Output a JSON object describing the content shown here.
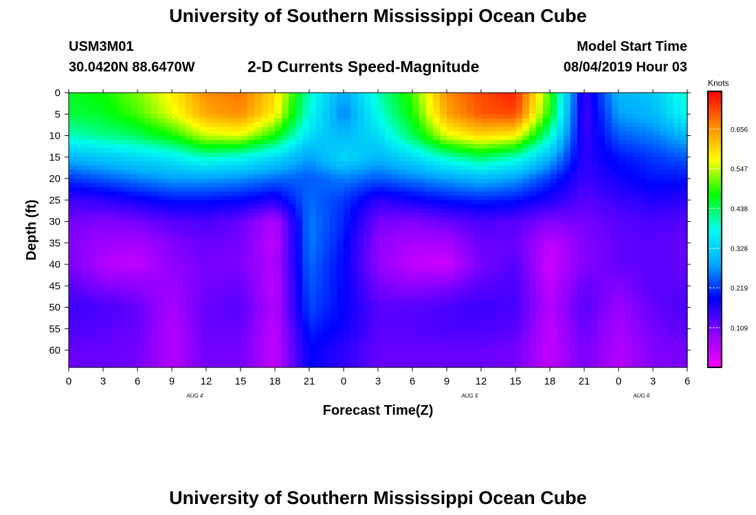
{
  "header": {
    "title_top": "University of Southern Mississippi Ocean Cube",
    "station_id": "USM3M01",
    "station_coords": "30.0420N 88.6470W",
    "plot_title": "2-D Currents Speed-Magnitude",
    "model_start_label": "Model Start Time",
    "model_start_value": "08/04/2019 Hour 03",
    "title_bottom": "University of Southern Mississippi Ocean Cube"
  },
  "chart_data": {
    "type": "heatmap",
    "title": "2-D Currents Speed-Magnitude",
    "xlabel": "Forecast Time(Z)",
    "ylabel": "Depth (ft)",
    "x_tick_labels": [
      "0",
      "3",
      "6",
      "9",
      "12",
      "15",
      "18",
      "21",
      "0",
      "3",
      "6",
      "9",
      "12",
      "15",
      "18",
      "21",
      "0",
      "3",
      "6"
    ],
    "x_hours_range": [
      0,
      54
    ],
    "date_labels": [
      {
        "text": "AUG 4",
        "hour": 11
      },
      {
        "text": "AUG 5",
        "hour": 35
      },
      {
        "text": "AUG 6",
        "hour": 50
      }
    ],
    "y_ticks": [
      0,
      5,
      10,
      15,
      20,
      25,
      30,
      35,
      40,
      45,
      50,
      55,
      60
    ],
    "ylim": [
      0,
      64
    ],
    "y_inverted": true,
    "colorbar": {
      "label": "Knots",
      "ticks": [
        "0.109",
        "0.219",
        "0.328",
        "0.438",
        "0.547",
        "0.656"
      ],
      "tick_values": [
        0.109,
        0.219,
        0.328,
        0.438,
        0.547,
        0.656
      ],
      "range": [
        0.0,
        0.76
      ],
      "colors": [
        "#ff00ff",
        "#8a00ff",
        "#0000ff",
        "#00aaff",
        "#00ffee",
        "#00ff00",
        "#ffff00",
        "#ff8800",
        "#ff0000"
      ]
    },
    "x_hours": [
      0,
      3,
      6,
      9,
      12,
      15,
      18,
      21,
      24,
      27,
      30,
      33,
      36,
      39,
      42,
      45,
      48,
      51,
      54
    ],
    "depth_ft": [
      0,
      5,
      10,
      15,
      20,
      25,
      30,
      35,
      40,
      45,
      50,
      55,
      60
    ],
    "values": [
      [
        0.46,
        0.48,
        0.52,
        0.58,
        0.66,
        0.68,
        0.6,
        0.4,
        0.28,
        0.4,
        0.5,
        0.66,
        0.71,
        0.74,
        0.5,
        0.15,
        0.3,
        0.32,
        0.4
      ],
      [
        0.45,
        0.46,
        0.5,
        0.56,
        0.64,
        0.66,
        0.58,
        0.38,
        0.26,
        0.38,
        0.48,
        0.64,
        0.7,
        0.71,
        0.48,
        0.14,
        0.28,
        0.3,
        0.38
      ],
      [
        0.4,
        0.42,
        0.44,
        0.48,
        0.55,
        0.56,
        0.48,
        0.34,
        0.3,
        0.34,
        0.44,
        0.56,
        0.6,
        0.58,
        0.4,
        0.15,
        0.24,
        0.26,
        0.3
      ],
      [
        0.3,
        0.32,
        0.34,
        0.36,
        0.4,
        0.38,
        0.34,
        0.28,
        0.34,
        0.3,
        0.34,
        0.4,
        0.44,
        0.4,
        0.3,
        0.16,
        0.2,
        0.22,
        0.24
      ],
      [
        0.22,
        0.24,
        0.26,
        0.28,
        0.28,
        0.27,
        0.25,
        0.24,
        0.26,
        0.24,
        0.26,
        0.28,
        0.3,
        0.28,
        0.22,
        0.15,
        0.18,
        0.2,
        0.2
      ],
      [
        0.15,
        0.16,
        0.18,
        0.2,
        0.2,
        0.19,
        0.17,
        0.25,
        0.22,
        0.16,
        0.18,
        0.2,
        0.21,
        0.2,
        0.17,
        0.13,
        0.15,
        0.17,
        0.16
      ],
      [
        0.11,
        0.1,
        0.11,
        0.13,
        0.14,
        0.12,
        0.06,
        0.26,
        0.21,
        0.11,
        0.1,
        0.12,
        0.14,
        0.13,
        0.1,
        0.11,
        0.13,
        0.14,
        0.13
      ],
      [
        0.1,
        0.08,
        0.07,
        0.1,
        0.12,
        0.11,
        0.05,
        0.26,
        0.2,
        0.09,
        0.07,
        0.07,
        0.12,
        0.12,
        0.05,
        0.1,
        0.12,
        0.13,
        0.12
      ],
      [
        0.11,
        0.06,
        0.05,
        0.09,
        0.11,
        0.1,
        0.06,
        0.25,
        0.19,
        0.09,
        0.05,
        0.04,
        0.11,
        0.13,
        0.04,
        0.1,
        0.12,
        0.13,
        0.12
      ],
      [
        0.13,
        0.1,
        0.09,
        0.08,
        0.11,
        0.12,
        0.05,
        0.24,
        0.19,
        0.11,
        0.09,
        0.1,
        0.13,
        0.14,
        0.05,
        0.12,
        0.1,
        0.13,
        0.13
      ],
      [
        0.15,
        0.14,
        0.12,
        0.07,
        0.12,
        0.13,
        0.06,
        0.23,
        0.19,
        0.13,
        0.13,
        0.14,
        0.15,
        0.14,
        0.06,
        0.13,
        0.08,
        0.12,
        0.14
      ],
      [
        0.14,
        0.13,
        0.12,
        0.06,
        0.12,
        0.12,
        0.05,
        0.21,
        0.18,
        0.13,
        0.13,
        0.14,
        0.14,
        0.13,
        0.05,
        0.12,
        0.07,
        0.11,
        0.13
      ],
      [
        0.12,
        0.12,
        0.11,
        0.06,
        0.11,
        0.11,
        0.05,
        0.19,
        0.16,
        0.12,
        0.12,
        0.12,
        0.12,
        0.11,
        0.05,
        0.11,
        0.06,
        0.1,
        0.11
      ]
    ]
  }
}
